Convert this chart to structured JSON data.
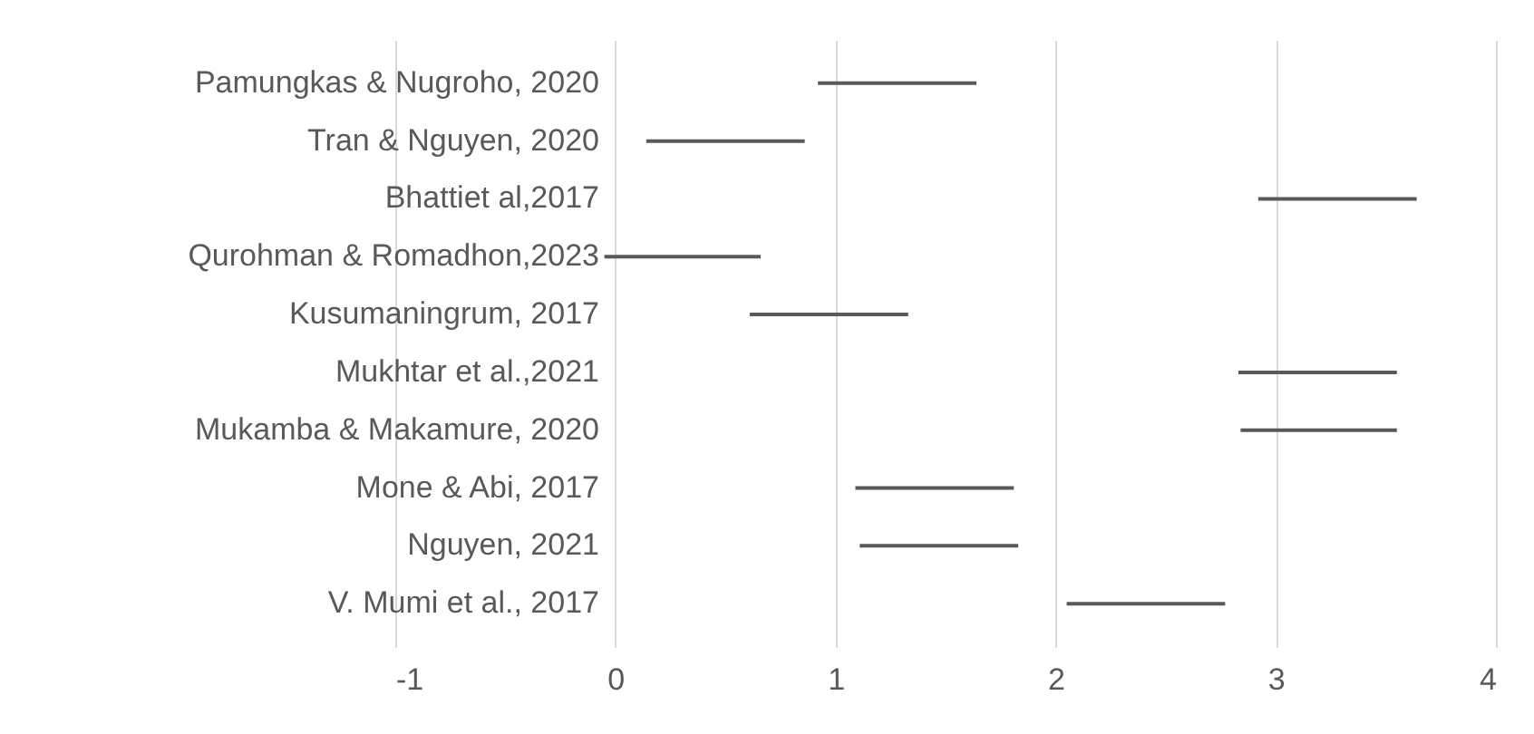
{
  "chart_data": {
    "type": "bar",
    "orientation": "horizontal",
    "categories": [
      "Pamungkas & Nugroho, 2020",
      "Tran & Nguyen, 2020",
      "Bhattiet al,2017",
      "Qurohman & Romadhon,2023",
      "Kusumaningrum, 2017",
      "Mukhtar et al.,2021",
      "Mukamba & Makamure, 2020",
      "Mone & Abi, 2017",
      "Nguyen, 2021",
      "V. Mumi et al., 2017"
    ],
    "series": [
      {
        "color": "#595959",
        "base": [
          0.92,
          0.14,
          2.92,
          -0.05,
          0.61,
          2.83,
          2.84,
          1.09,
          1.11,
          2.05
        ],
        "values": [
          0.72,
          0.72,
          0.72,
          0.71,
          0.72,
          0.72,
          0.71,
          0.72,
          0.72,
          0.72
        ]
      }
    ],
    "xlim": [
      -1,
      4
    ],
    "xticks": [
      -1,
      0,
      1,
      2,
      3,
      4
    ],
    "grid": "x"
  }
}
